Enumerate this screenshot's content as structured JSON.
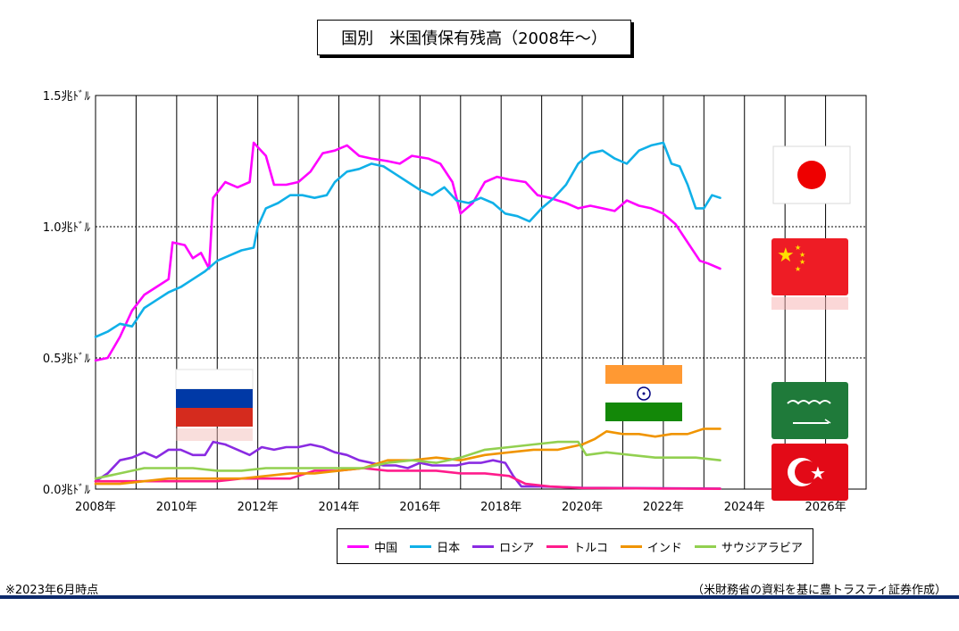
{
  "chart_data": {
    "type": "line",
    "title": "国別　米国債保有残高（2008年～）",
    "x_ticks": [
      "2008年",
      "2010年",
      "2012年",
      "2014年",
      "2016年",
      "2018年",
      "2020年",
      "2022年",
      "2024年",
      "2026年"
    ],
    "y_ticks": [
      "0.0兆ﾄﾞﾙ",
      "0.5兆ﾄﾞﾙ",
      "1.0兆ﾄﾞﾙ",
      "1.5兆ﾄﾞﾙ"
    ],
    "xlim": [
      2008.0,
      2027.0
    ],
    "ylim": [
      0,
      1.5
    ],
    "grid": true,
    "legend_position": "bottom",
    "series": [
      {
        "name": "中国",
        "color": "#ff00ff",
        "points": [
          [
            2008.0,
            0.49
          ],
          [
            2008.3,
            0.5
          ],
          [
            2008.6,
            0.58
          ],
          [
            2008.9,
            0.68
          ],
          [
            2009.2,
            0.74
          ],
          [
            2009.5,
            0.77
          ],
          [
            2009.8,
            0.8
          ],
          [
            2009.9,
            0.94
          ],
          [
            2010.2,
            0.93
          ],
          [
            2010.4,
            0.88
          ],
          [
            2010.6,
            0.9
          ],
          [
            2010.8,
            0.84
          ],
          [
            2010.9,
            1.11
          ],
          [
            2011.2,
            1.17
          ],
          [
            2011.5,
            1.15
          ],
          [
            2011.8,
            1.17
          ],
          [
            2011.9,
            1.32
          ],
          [
            2012.2,
            1.27
          ],
          [
            2012.4,
            1.16
          ],
          [
            2012.7,
            1.16
          ],
          [
            2013.0,
            1.17
          ],
          [
            2013.3,
            1.21
          ],
          [
            2013.6,
            1.28
          ],
          [
            2013.9,
            1.29
          ],
          [
            2014.2,
            1.31
          ],
          [
            2014.5,
            1.27
          ],
          [
            2014.8,
            1.26
          ],
          [
            2015.2,
            1.25
          ],
          [
            2015.5,
            1.24
          ],
          [
            2015.8,
            1.27
          ],
          [
            2016.2,
            1.26
          ],
          [
            2016.5,
            1.24
          ],
          [
            2016.8,
            1.17
          ],
          [
            2017.0,
            1.05
          ],
          [
            2017.3,
            1.09
          ],
          [
            2017.6,
            1.17
          ],
          [
            2017.9,
            1.19
          ],
          [
            2018.2,
            1.18
          ],
          [
            2018.6,
            1.17
          ],
          [
            2018.9,
            1.12
          ],
          [
            2019.2,
            1.11
          ],
          [
            2019.6,
            1.09
          ],
          [
            2019.9,
            1.07
          ],
          [
            2020.2,
            1.08
          ],
          [
            2020.5,
            1.07
          ],
          [
            2020.8,
            1.06
          ],
          [
            2021.1,
            1.1
          ],
          [
            2021.4,
            1.08
          ],
          [
            2021.7,
            1.07
          ],
          [
            2022.0,
            1.05
          ],
          [
            2022.3,
            1.01
          ],
          [
            2022.6,
            0.94
          ],
          [
            2022.9,
            0.87
          ],
          [
            2023.1,
            0.86
          ],
          [
            2023.4,
            0.84
          ]
        ]
      },
      {
        "name": "日本",
        "color": "#10b0e8",
        "points": [
          [
            2008.0,
            0.58
          ],
          [
            2008.3,
            0.6
          ],
          [
            2008.6,
            0.63
          ],
          [
            2008.9,
            0.62
          ],
          [
            2009.2,
            0.69
          ],
          [
            2009.5,
            0.72
          ],
          [
            2009.8,
            0.75
          ],
          [
            2010.1,
            0.77
          ],
          [
            2010.4,
            0.8
          ],
          [
            2010.7,
            0.83
          ],
          [
            2011.0,
            0.87
          ],
          [
            2011.3,
            0.89
          ],
          [
            2011.6,
            0.91
          ],
          [
            2011.9,
            0.92
          ],
          [
            2012.0,
            1.0
          ],
          [
            2012.2,
            1.07
          ],
          [
            2012.5,
            1.09
          ],
          [
            2012.8,
            1.12
          ],
          [
            2013.1,
            1.12
          ],
          [
            2013.4,
            1.11
          ],
          [
            2013.7,
            1.12
          ],
          [
            2013.9,
            1.17
          ],
          [
            2014.2,
            1.21
          ],
          [
            2014.5,
            1.22
          ],
          [
            2014.8,
            1.24
          ],
          [
            2015.1,
            1.23
          ],
          [
            2015.4,
            1.2
          ],
          [
            2015.7,
            1.17
          ],
          [
            2016.0,
            1.14
          ],
          [
            2016.3,
            1.12
          ],
          [
            2016.6,
            1.15
          ],
          [
            2016.9,
            1.1
          ],
          [
            2017.2,
            1.09
          ],
          [
            2017.5,
            1.11
          ],
          [
            2017.8,
            1.09
          ],
          [
            2018.1,
            1.05
          ],
          [
            2018.4,
            1.04
          ],
          [
            2018.7,
            1.02
          ],
          [
            2019.0,
            1.07
          ],
          [
            2019.3,
            1.11
          ],
          [
            2019.6,
            1.16
          ],
          [
            2019.9,
            1.24
          ],
          [
            2020.2,
            1.28
          ],
          [
            2020.5,
            1.29
          ],
          [
            2020.8,
            1.26
          ],
          [
            2021.1,
            1.24
          ],
          [
            2021.4,
            1.29
          ],
          [
            2021.7,
            1.31
          ],
          [
            2022.0,
            1.32
          ],
          [
            2022.2,
            1.24
          ],
          [
            2022.4,
            1.23
          ],
          [
            2022.6,
            1.16
          ],
          [
            2022.8,
            1.07
          ],
          [
            2023.0,
            1.07
          ],
          [
            2023.2,
            1.12
          ],
          [
            2023.4,
            1.11
          ]
        ]
      },
      {
        "name": "ロシア",
        "color": "#8a2be2",
        "points": [
          [
            2008.0,
            0.03
          ],
          [
            2008.3,
            0.06
          ],
          [
            2008.6,
            0.11
          ],
          [
            2008.9,
            0.12
          ],
          [
            2009.2,
            0.14
          ],
          [
            2009.5,
            0.12
          ],
          [
            2009.8,
            0.15
          ],
          [
            2010.1,
            0.15
          ],
          [
            2010.4,
            0.13
          ],
          [
            2010.7,
            0.13
          ],
          [
            2010.9,
            0.18
          ],
          [
            2011.2,
            0.17
          ],
          [
            2011.5,
            0.15
          ],
          [
            2011.8,
            0.13
          ],
          [
            2012.1,
            0.16
          ],
          [
            2012.4,
            0.15
          ],
          [
            2012.7,
            0.16
          ],
          [
            2013.0,
            0.16
          ],
          [
            2013.3,
            0.17
          ],
          [
            2013.6,
            0.16
          ],
          [
            2013.9,
            0.14
          ],
          [
            2014.2,
            0.13
          ],
          [
            2014.5,
            0.11
          ],
          [
            2014.8,
            0.1
          ],
          [
            2015.1,
            0.09
          ],
          [
            2015.4,
            0.09
          ],
          [
            2015.7,
            0.08
          ],
          [
            2016.0,
            0.1
          ],
          [
            2016.3,
            0.09
          ],
          [
            2016.6,
            0.09
          ],
          [
            2016.9,
            0.09
          ],
          [
            2017.2,
            0.1
          ],
          [
            2017.5,
            0.1
          ],
          [
            2017.8,
            0.11
          ],
          [
            2018.1,
            0.1
          ],
          [
            2018.3,
            0.05
          ],
          [
            2018.5,
            0.01
          ],
          [
            2019.0,
            0.01
          ],
          [
            2020.0,
            0.005
          ],
          [
            2021.0,
            0.004
          ],
          [
            2022.0,
            0.003
          ],
          [
            2023.4,
            0.002
          ]
        ]
      },
      {
        "name": "トルコ",
        "color": "#ff1c8c",
        "points": [
          [
            2008.0,
            0.03
          ],
          [
            2008.6,
            0.03
          ],
          [
            2009.2,
            0.03
          ],
          [
            2009.8,
            0.03
          ],
          [
            2010.4,
            0.03
          ],
          [
            2011.0,
            0.03
          ],
          [
            2011.6,
            0.04
          ],
          [
            2012.2,
            0.04
          ],
          [
            2012.8,
            0.04
          ],
          [
            2013.4,
            0.07
          ],
          [
            2014.0,
            0.07
          ],
          [
            2014.6,
            0.08
          ],
          [
            2015.2,
            0.07
          ],
          [
            2015.8,
            0.07
          ],
          [
            2016.4,
            0.07
          ],
          [
            2017.0,
            0.06
          ],
          [
            2017.6,
            0.06
          ],
          [
            2018.2,
            0.05
          ],
          [
            2018.6,
            0.02
          ],
          [
            2019.2,
            0.01
          ],
          [
            2020.0,
            0.004
          ],
          [
            2021.0,
            0.003
          ],
          [
            2022.0,
            0.002
          ],
          [
            2023.4,
            0.001
          ]
        ]
      },
      {
        "name": "インド",
        "color": "#f09400",
        "points": [
          [
            2008.0,
            0.02
          ],
          [
            2008.6,
            0.02
          ],
          [
            2009.2,
            0.03
          ],
          [
            2009.8,
            0.04
          ],
          [
            2010.4,
            0.04
          ],
          [
            2011.0,
            0.04
          ],
          [
            2011.6,
            0.04
          ],
          [
            2012.2,
            0.05
          ],
          [
            2012.8,
            0.06
          ],
          [
            2013.4,
            0.06
          ],
          [
            2014.0,
            0.07
          ],
          [
            2014.6,
            0.08
          ],
          [
            2015.2,
            0.11
          ],
          [
            2015.8,
            0.11
          ],
          [
            2016.4,
            0.12
          ],
          [
            2017.0,
            0.11
          ],
          [
            2017.6,
            0.13
          ],
          [
            2018.2,
            0.14
          ],
          [
            2018.8,
            0.15
          ],
          [
            2019.4,
            0.15
          ],
          [
            2020.0,
            0.17
          ],
          [
            2020.3,
            0.19
          ],
          [
            2020.6,
            0.22
          ],
          [
            2021.0,
            0.21
          ],
          [
            2021.4,
            0.21
          ],
          [
            2021.8,
            0.2
          ],
          [
            2022.2,
            0.21
          ],
          [
            2022.6,
            0.21
          ],
          [
            2023.0,
            0.23
          ],
          [
            2023.4,
            0.23
          ]
        ]
      },
      {
        "name": "サウジアラビア",
        "color": "#92d050",
        "points": [
          [
            2008.0,
            0.04
          ],
          [
            2008.6,
            0.06
          ],
          [
            2009.2,
            0.08
          ],
          [
            2009.8,
            0.08
          ],
          [
            2010.4,
            0.08
          ],
          [
            2011.0,
            0.07
          ],
          [
            2011.6,
            0.07
          ],
          [
            2012.2,
            0.08
          ],
          [
            2012.8,
            0.08
          ],
          [
            2013.4,
            0.08
          ],
          [
            2014.0,
            0.08
          ],
          [
            2014.6,
            0.08
          ],
          [
            2015.2,
            0.1
          ],
          [
            2015.8,
            0.11
          ],
          [
            2016.4,
            0.1
          ],
          [
            2017.0,
            0.12
          ],
          [
            2017.6,
            0.15
          ],
          [
            2018.2,
            0.16
          ],
          [
            2018.8,
            0.17
          ],
          [
            2019.4,
            0.18
          ],
          [
            2019.9,
            0.18
          ],
          [
            2020.1,
            0.13
          ],
          [
            2020.6,
            0.14
          ],
          [
            2021.2,
            0.13
          ],
          [
            2021.8,
            0.12
          ],
          [
            2022.4,
            0.12
          ],
          [
            2022.8,
            0.12
          ],
          [
            2023.4,
            0.11
          ]
        ]
      }
    ]
  },
  "annotations": {
    "footnote": "※2023年6月時点",
    "source": "（米財務省の資料を基に豊トラスティ証券作成）"
  },
  "flags": [
    {
      "name": "japan-flag-icon"
    },
    {
      "name": "china-flag-icon"
    },
    {
      "name": "russia-flag-icon"
    },
    {
      "name": "india-flag-icon"
    },
    {
      "name": "saudi-arabia-flag-icon"
    },
    {
      "name": "turkey-flag-icon"
    }
  ]
}
